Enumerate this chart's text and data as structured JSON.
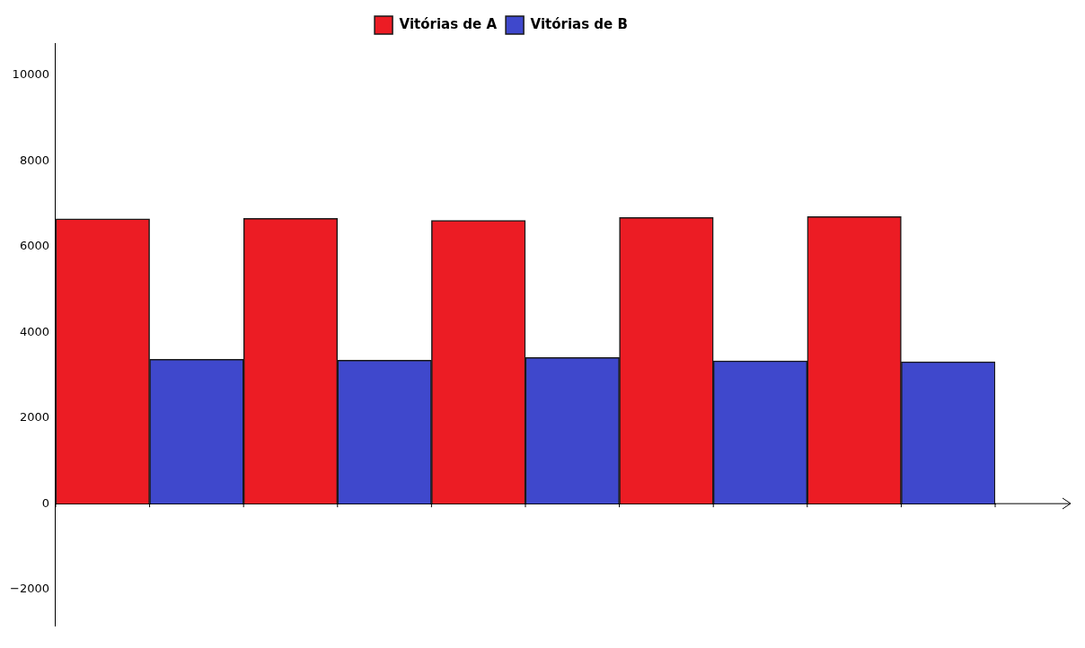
{
  "chart_data": {
    "type": "bar",
    "categories": [
      null,
      null,
      null,
      null,
      null
    ],
    "series": [
      {
        "name": "Vitórias de A",
        "color": "#ec1c24",
        "values": [
          6650,
          6660,
          6610,
          6680,
          6700
        ]
      },
      {
        "name": "Vitórias de B",
        "color": "#3f48cc",
        "values": [
          3370,
          3350,
          3410,
          3330,
          3310
        ]
      }
    ],
    "ylim": [
      -2850,
      10750
    ],
    "yticks": [
      -2000,
      0,
      2000,
      4000,
      6000,
      8000,
      10000
    ],
    "legend": "top"
  }
}
